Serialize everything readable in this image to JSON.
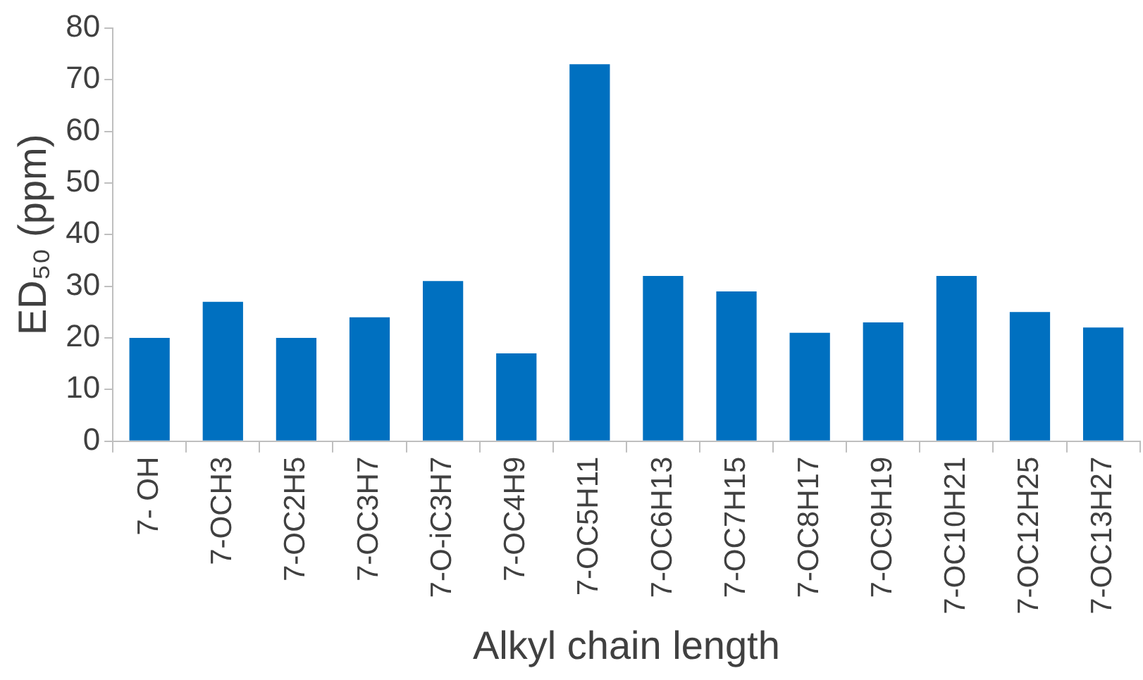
{
  "chart_data": {
    "type": "bar",
    "xlabel": "Alkyl chain length",
    "ylabel": "ED₅₀ (ppm)",
    "categories": [
      "7- OH",
      "7-OCH3",
      "7-OC2H5",
      "7-OC3H7",
      "7-O-iC3H7",
      "7-OC4H9",
      "7-OC5H11",
      "7-OC6H13",
      "7-OC7H15",
      "7-OC8H17",
      "7-OC9H19",
      "7-OC10H21",
      "7-OC12H25",
      "7-OC13H27"
    ],
    "values": [
      20,
      27,
      20,
      24,
      31,
      17,
      73,
      32,
      29,
      21,
      23,
      32,
      25,
      22
    ],
    "color": "#0070c0",
    "ylim": [
      0,
      80
    ],
    "yticks": [
      0,
      10,
      20,
      30,
      40,
      50,
      60,
      70,
      80
    ],
    "grid": false,
    "legend": false
  }
}
